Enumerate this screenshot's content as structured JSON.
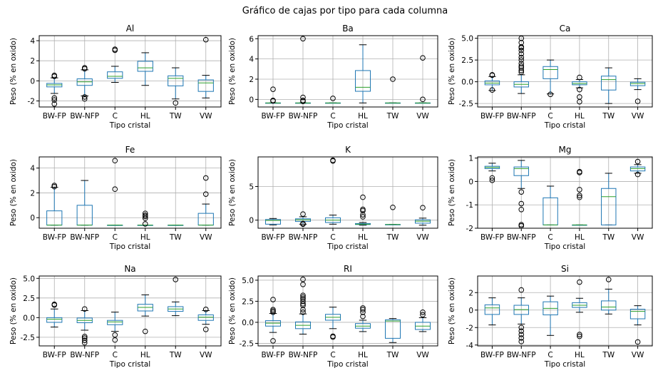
{
  "suptitle": "Gráfico de cajas por tipo para cada columna",
  "colors": {
    "box": "#1f77b4",
    "median": "#2ca02c",
    "grid": "#b0b0b0",
    "flier": "#000000"
  },
  "chart_data": [
    {
      "type": "box",
      "title": "Al",
      "xlabel": "Tipo cristal",
      "ylabel": "Peso (% en oxido)",
      "grid": true,
      "categories": [
        "BW-FP",
        "BW-NFP",
        "C",
        "HL",
        "TW",
        "VW"
      ],
      "ylim": [
        -2.6,
        4.5
      ],
      "yticks": [
        -2,
        0,
        2,
        4
      ],
      "boxes": [
        {
          "whislo": -1.25,
          "q1": -0.6,
          "med": -0.4,
          "q3": -0.25,
          "whishi": 0.3,
          "fliers": [
            0.55,
            0.45,
            -1.7,
            -1.9,
            -2.3
          ]
        },
        {
          "whislo": -1.5,
          "q1": -0.45,
          "med": -0.1,
          "q3": 0.2,
          "whishi": 1.1,
          "fliers": [
            1.3,
            1.2,
            -1.6,
            -1.8
          ]
        },
        {
          "whislo": -0.15,
          "q1": 0.25,
          "med": 0.45,
          "q3": 0.9,
          "whishi": 1.45,
          "fliers": [
            3.15,
            3.05
          ]
        },
        {
          "whislo": -0.45,
          "q1": 0.95,
          "med": 1.3,
          "q3": 1.95,
          "whishi": 2.8,
          "fliers": []
        },
        {
          "whislo": -1.8,
          "q1": -0.5,
          "med": 0.25,
          "q3": 0.5,
          "whishi": 1.3,
          "fliers": [
            -2.2
          ]
        },
        {
          "whislo": -1.7,
          "q1": -1.05,
          "med": -0.2,
          "q3": 0.1,
          "whishi": 0.55,
          "fliers": [
            4.1
          ]
        }
      ]
    },
    {
      "type": "box",
      "title": "Ba",
      "xlabel": "Tipo cristal",
      "ylabel": "Peso (% en oxido)",
      "grid": true,
      "categories": [
        "BW-FP",
        "BW-NFP",
        "C",
        "HL",
        "TW",
        "VW"
      ],
      "ylim": [
        -0.75,
        6.3
      ],
      "yticks": [
        0,
        2,
        4,
        6
      ],
      "boxes": [
        {
          "whislo": -0.35,
          "q1": -0.35,
          "med": -0.35,
          "q3": -0.35,
          "whishi": -0.35,
          "fliers": [
            1.0,
            -0.1,
            -0.15
          ]
        },
        {
          "whislo": -0.35,
          "q1": -0.35,
          "med": -0.35,
          "q3": -0.35,
          "whishi": -0.35,
          "fliers": [
            6.0,
            0.2,
            -0.1,
            -0.2
          ]
        },
        {
          "whislo": -0.35,
          "q1": -0.35,
          "med": -0.35,
          "q3": -0.35,
          "whishi": -0.35,
          "fliers": [
            0.1
          ]
        },
        {
          "whislo": -0.35,
          "q1": 0.8,
          "med": 1.2,
          "q3": 2.85,
          "whishi": 5.4,
          "fliers": []
        },
        {
          "whislo": -0.35,
          "q1": -0.35,
          "med": -0.35,
          "q3": -0.35,
          "whishi": -0.35,
          "fliers": [
            2.0
          ]
        },
        {
          "whislo": -0.35,
          "q1": -0.35,
          "med": -0.35,
          "q3": -0.35,
          "whishi": -0.35,
          "fliers": [
            4.1,
            0.0
          ]
        }
      ]
    },
    {
      "type": "box",
      "title": "Ca",
      "xlabel": "Tipo cristal",
      "ylabel": "Peso (% en oxido)",
      "grid": true,
      "categories": [
        "BW-FP",
        "BW-NFP",
        "C",
        "HL",
        "TW",
        "VW"
      ],
      "ylim": [
        -2.9,
        5.3
      ],
      "yticks": [
        -2.5,
        0.0,
        2.5,
        5.0
      ],
      "boxes": [
        {
          "whislo": -1.0,
          "q1": -0.35,
          "med": -0.15,
          "q3": 0.1,
          "whishi": 0.6,
          "fliers": [
            0.8,
            0.75,
            -0.95
          ]
        },
        {
          "whislo": -1.35,
          "q1": -0.6,
          "med": -0.3,
          "q3": 0.0,
          "whishi": 0.8,
          "fliers": [
            5.0,
            4.5,
            4.0,
            3.9,
            3.6,
            3.2,
            2.8,
            2.5,
            2.1,
            1.8,
            1.6,
            1.3,
            1.1
          ]
        },
        {
          "whislo": -1.4,
          "q1": 0.35,
          "med": 1.4,
          "q3": 1.75,
          "whishi": 2.5,
          "fliers": [
            -1.45
          ]
        },
        {
          "whislo": -0.7,
          "q1": -0.35,
          "med": -0.2,
          "q3": 0.0,
          "whishi": 0.25,
          "fliers": [
            0.5,
            -0.9,
            -1.75,
            -2.3
          ]
        },
        {
          "whislo": -2.5,
          "q1": -0.95,
          "med": 0.25,
          "q3": 0.65,
          "whishi": 1.6,
          "fliers": []
        },
        {
          "whislo": -0.9,
          "q1": -0.45,
          "med": -0.2,
          "q3": -0.05,
          "whishi": 0.35,
          "fliers": [
            -2.25
          ]
        }
      ]
    },
    {
      "type": "box",
      "title": "Fe",
      "xlabel": "Tipo cristal",
      "ylabel": "Peso (% en oxido)",
      "grid": true,
      "categories": [
        "BW-FP",
        "BW-NFP",
        "C",
        "HL",
        "TW",
        "VW"
      ],
      "ylim": [
        -0.85,
        4.9
      ],
      "yticks": [
        0,
        2,
        4
      ],
      "boxes": [
        {
          "whislo": -0.6,
          "q1": -0.6,
          "med": -0.6,
          "q3": 0.55,
          "whishi": 2.45,
          "fliers": [
            2.6,
            2.5
          ]
        },
        {
          "whislo": -0.6,
          "q1": -0.6,
          "med": -0.6,
          "q3": 1.0,
          "whishi": 3.0,
          "fliers": []
        },
        {
          "whislo": -0.6,
          "q1": -0.6,
          "med": -0.6,
          "q3": -0.6,
          "whishi": -0.6,
          "fliers": [
            4.6,
            2.3
          ]
        },
        {
          "whislo": -0.6,
          "q1": -0.6,
          "med": -0.6,
          "q3": -0.6,
          "whishi": -0.6,
          "fliers": [
            0.35,
            0.2,
            0.1,
            -0.05,
            -0.5
          ]
        },
        {
          "whislo": -0.6,
          "q1": -0.6,
          "med": -0.6,
          "q3": -0.6,
          "whishi": -0.6,
          "fliers": []
        },
        {
          "whislo": -0.6,
          "q1": -0.6,
          "med": -0.6,
          "q3": 0.35,
          "whishi": 1.1,
          "fliers": [
            3.2,
            1.9
          ]
        }
      ]
    },
    {
      "type": "box",
      "title": "K",
      "xlabel": "Tipo cristal",
      "ylabel": "Peso (% en oxido)",
      "grid": true,
      "categories": [
        "BW-FP",
        "BW-NFP",
        "C",
        "HL",
        "TW",
        "VW"
      ],
      "ylim": [
        -1.2,
        9.4
      ],
      "yticks": [
        0,
        5
      ],
      "boxes": [
        {
          "whislo": -0.7,
          "q1": -0.6,
          "med": -0.05,
          "q3": 0.1,
          "whishi": 0.25,
          "fliers": []
        },
        {
          "whislo": -0.6,
          "q1": -0.2,
          "med": 0.05,
          "q3": 0.2,
          "whishi": 0.5,
          "fliers": [
            0.9,
            -0.5,
            -0.6
          ]
        },
        {
          "whislo": -0.6,
          "q1": -0.35,
          "med": 0.0,
          "q3": 0.35,
          "whishi": 0.75,
          "fliers": [
            8.9,
            8.8
          ]
        },
        {
          "whislo": -0.75,
          "q1": -0.65,
          "med": -0.6,
          "q3": -0.5,
          "whishi": -0.35,
          "fliers": [
            3.4,
            1.6,
            1.4,
            0.8,
            0.5
          ]
        },
        {
          "whislo": -0.65,
          "q1": -0.65,
          "med": -0.65,
          "q3": -0.65,
          "whishi": -0.65,
          "fliers": [
            1.9
          ]
        },
        {
          "whislo": -0.75,
          "q1": -0.45,
          "med": -0.15,
          "q3": 0.05,
          "whishi": 0.3,
          "fliers": [
            1.85
          ]
        }
      ]
    },
    {
      "type": "box",
      "title": "Mg",
      "xlabel": "Tipo cristal",
      "ylabel": "Peso (% en oxido)",
      "grid": true,
      "categories": [
        "BW-FP",
        "BW-NFP",
        "C",
        "HL",
        "TW",
        "VW"
      ],
      "ylim": [
        -2.0,
        1.05
      ],
      "yticks": [
        -2,
        -1,
        0,
        1
      ],
      "boxes": [
        {
          "whislo": 0.45,
          "q1": 0.55,
          "med": 0.6,
          "q3": 0.65,
          "whishi": 0.78,
          "fliers": [
            0.15,
            0.05
          ]
        },
        {
          "whislo": -0.3,
          "q1": 0.25,
          "med": 0.55,
          "q3": 0.62,
          "whishi": 0.9,
          "fliers": [
            -0.45,
            -0.95,
            -1.2,
            -1.85,
            -1.9
          ]
        },
        {
          "whislo": -1.86,
          "q1": -1.86,
          "med": -1.86,
          "q3": -0.7,
          "whishi": -0.2,
          "fliers": []
        },
        {
          "whislo": -1.86,
          "q1": -1.86,
          "med": -1.86,
          "q3": -1.86,
          "whishi": -1.86,
          "fliers": [
            0.42,
            0.38,
            -0.35,
            -0.6,
            -0.68
          ]
        },
        {
          "whislo": -1.86,
          "q1": -1.86,
          "med": -0.65,
          "q3": -0.3,
          "whishi": 0.35,
          "fliers": []
        },
        {
          "whislo": 0.35,
          "q1": 0.45,
          "med": 0.55,
          "q3": 0.62,
          "whishi": 0.72,
          "fliers": [
            0.85,
            0.3
          ]
        }
      ]
    },
    {
      "type": "box",
      "title": "Na",
      "xlabel": "Tipo cristal",
      "ylabel": "Peso (% en oxido)",
      "grid": true,
      "categories": [
        "BW-FP",
        "BW-NFP",
        "C",
        "HL",
        "TW",
        "VW"
      ],
      "ylim": [
        -3.6,
        5.3
      ],
      "yticks": [
        -2.5,
        0.0,
        2.5,
        5.0
      ],
      "boxes": [
        {
          "whislo": -1.2,
          "q1": -0.6,
          "med": -0.2,
          "q3": 0.0,
          "whishi": 1.1,
          "fliers": [
            1.7,
            1.6
          ]
        },
        {
          "whislo": -1.6,
          "q1": -0.65,
          "med": -0.35,
          "q3": -0.05,
          "whishi": 0.9,
          "fliers": [
            1.1,
            -2.4,
            -2.6,
            -2.9,
            -3.2
          ]
        },
        {
          "whislo": -1.75,
          "q1": -0.9,
          "med": -0.55,
          "q3": -0.35,
          "whishi": 0.7,
          "fliers": [
            -2.2,
            -2.85
          ]
        },
        {
          "whislo": 0.2,
          "q1": 0.85,
          "med": 1.3,
          "q3": 1.7,
          "whishi": 2.9,
          "fliers": [
            -1.75
          ]
        },
        {
          "whislo": 0.25,
          "q1": 0.8,
          "med": 1.1,
          "q3": 1.4,
          "whishi": 2.0,
          "fliers": [
            4.85
          ]
        },
        {
          "whislo": -0.85,
          "q1": -0.35,
          "med": 0.05,
          "q3": 0.35,
          "whishi": 0.9,
          "fliers": [
            1.05,
            -1.5
          ]
        }
      ]
    },
    {
      "type": "box",
      "title": "RI",
      "xlabel": "Tipo cristal",
      "ylabel": "Peso (% en oxido)",
      "grid": true,
      "categories": [
        "BW-FP",
        "BW-NFP",
        "C",
        "HL",
        "TW",
        "VW"
      ],
      "ylim": [
        -2.8,
        5.5
      ],
      "yticks": [
        -2.5,
        0.0,
        2.5,
        5.0
      ],
      "boxes": [
        {
          "whislo": -1.2,
          "q1": -0.45,
          "med": -0.1,
          "q3": 0.2,
          "whishi": 1.05,
          "fliers": [
            2.7,
            1.5,
            1.35,
            1.2,
            -2.2
          ]
        },
        {
          "whislo": -1.4,
          "q1": -0.75,
          "med": -0.35,
          "q3": 0.05,
          "whishi": 1.0,
          "fliers": [
            5.1,
            4.5,
            3.2,
            3.0,
            2.8,
            2.5,
            2.2,
            2.0,
            1.5,
            1.2
          ]
        },
        {
          "whislo": -0.75,
          "q1": 0.25,
          "med": 0.6,
          "q3": 0.95,
          "whishi": 1.8,
          "fliers": [
            -1.65,
            -1.75
          ]
        },
        {
          "whislo": -1.1,
          "q1": -0.7,
          "med": -0.45,
          "q3": -0.15,
          "whishi": 0.25,
          "fliers": [
            1.7,
            1.5,
            1.2,
            0.7
          ]
        },
        {
          "whislo": -2.4,
          "q1": -1.9,
          "med": 0.15,
          "q3": 0.3,
          "whishi": 0.45,
          "fliers": []
        },
        {
          "whislo": -1.1,
          "q1": -0.85,
          "med": -0.45,
          "q3": 0.0,
          "whishi": 0.55,
          "fliers": [
            1.2,
            0.9
          ]
        }
      ]
    },
    {
      "type": "box",
      "title": "Si",
      "xlabel": "Tipo cristal",
      "ylabel": "Peso (% en oxido)",
      "grid": true,
      "categories": [
        "BW-FP",
        "BW-NFP",
        "C",
        "HL",
        "TW",
        "VW"
      ],
      "ylim": [
        -4.1,
        3.9
      ],
      "yticks": [
        -4,
        -2,
        0,
        2
      ],
      "boxes": [
        {
          "whislo": -1.7,
          "q1": -0.5,
          "med": 0.25,
          "q3": 0.6,
          "whishi": 1.4,
          "fliers": []
        },
        {
          "whislo": -1.6,
          "q1": -0.5,
          "med": 0.05,
          "q3": 0.55,
          "whishi": 1.4,
          "fliers": [
            2.3,
            -2.0,
            -2.4,
            -2.8,
            -3.2,
            -3.6
          ]
        },
        {
          "whislo": -2.9,
          "q1": -0.55,
          "med": 0.2,
          "q3": 0.95,
          "whishi": 1.6,
          "fliers": []
        },
        {
          "whislo": -0.25,
          "q1": 0.3,
          "med": 0.55,
          "q3": 0.85,
          "whishi": 1.35,
          "fliers": [
            3.2,
            -2.8,
            -3.0
          ]
        },
        {
          "whislo": -0.45,
          "q1": 0.0,
          "med": 0.35,
          "q3": 1.05,
          "whishi": 2.4,
          "fliers": [
            3.5
          ]
        },
        {
          "whislo": -1.7,
          "q1": -1.0,
          "med": -0.15,
          "q3": 0.1,
          "whishi": 0.5,
          "fliers": [
            -3.65
          ]
        }
      ]
    }
  ]
}
